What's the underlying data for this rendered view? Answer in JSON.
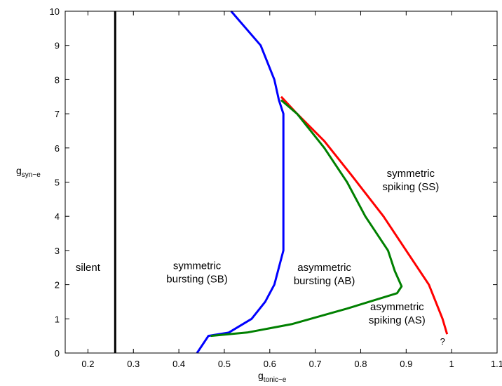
{
  "chart_data": {
    "type": "line",
    "xlabel": {
      "base": "g",
      "subscript": "tonic−e"
    },
    "ylabel": {
      "base": "g",
      "subscript": "syn−e"
    },
    "xlim": [
      0.15,
      1.1
    ],
    "ylim": [
      0,
      10
    ],
    "x_ticks": [
      "0.2",
      "0.3",
      "0.4",
      "0.5",
      "0.6",
      "0.7",
      "0.8",
      "0.9",
      "1",
      "1.1"
    ],
    "y_ticks": [
      "0",
      "1",
      "2",
      "3",
      "4",
      "5",
      "6",
      "7",
      "8",
      "9",
      "10"
    ],
    "grid": false,
    "series": [
      {
        "color": "#000000",
        "points": [
          [
            0.26,
            0
          ],
          [
            0.26,
            10
          ]
        ]
      },
      {
        "color": "#0000ff",
        "points": [
          [
            0.44,
            0
          ],
          [
            0.465,
            0.5
          ],
          [
            0.51,
            0.6
          ],
          [
            0.56,
            1.0
          ],
          [
            0.59,
            1.5
          ],
          [
            0.61,
            2.0
          ],
          [
            0.63,
            3.0
          ],
          [
            0.63,
            7.0
          ],
          [
            0.62,
            7.4
          ],
          [
            0.61,
            8.0
          ],
          [
            0.58,
            9.0
          ],
          [
            0.515,
            10.0
          ]
        ]
      },
      {
        "color": "#ff0000",
        "points": [
          [
            0.625,
            7.5
          ],
          [
            0.66,
            7.0
          ],
          [
            0.72,
            6.2
          ],
          [
            0.78,
            5.2
          ],
          [
            0.85,
            4.0
          ],
          [
            0.9,
            3.0
          ],
          [
            0.95,
            2.0
          ],
          [
            0.98,
            1.0
          ],
          [
            0.99,
            0.55
          ]
        ]
      },
      {
        "color": "#008000",
        "points": [
          [
            0.625,
            7.4
          ],
          [
            0.66,
            7.0
          ],
          [
            0.72,
            6.0
          ],
          [
            0.77,
            5.0
          ],
          [
            0.81,
            4.0
          ],
          [
            0.86,
            3.0
          ],
          [
            0.875,
            2.4
          ],
          [
            0.89,
            1.95
          ],
          [
            0.88,
            1.75
          ],
          [
            0.77,
            1.3
          ],
          [
            0.65,
            0.85
          ],
          [
            0.55,
            0.6
          ],
          [
            0.47,
            0.5
          ]
        ]
      }
    ],
    "annotations": [
      {
        "lines": [
          "silent"
        ],
        "x": 0.2,
        "y": 2.4
      },
      {
        "lines": [
          "symmetric",
          "bursting (SB)"
        ],
        "x": 0.44,
        "y": 2.45
      },
      {
        "lines": [
          "asymmetric",
          "bursting (AB)"
        ],
        "x": 0.72,
        "y": 2.4
      },
      {
        "lines": [
          "symmetric",
          "spiking (SS)"
        ],
        "x": 0.91,
        "y": 5.15
      },
      {
        "lines": [
          "asymmetric",
          "spiking (AS)"
        ],
        "x": 0.88,
        "y": 1.25
      },
      {
        "lines": [
          "?"
        ],
        "x": 0.98,
        "y": 0.25
      }
    ]
  }
}
